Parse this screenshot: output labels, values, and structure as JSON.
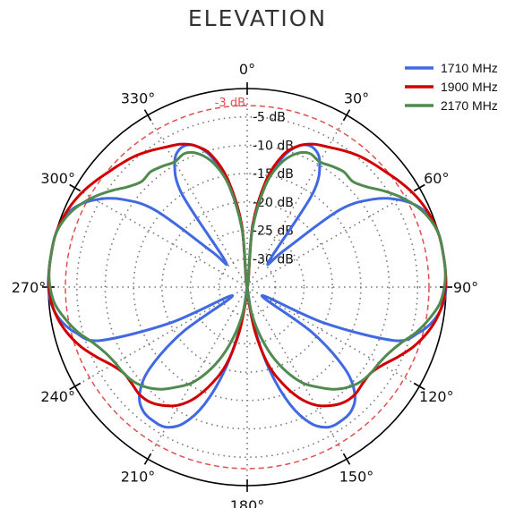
{
  "chart_data": {
    "type": "polar-line",
    "title": "ELEVATION",
    "angle_ticks": [
      {
        "deg": 0,
        "label": "0°"
      },
      {
        "deg": 30,
        "label": "30°"
      },
      {
        "deg": 60,
        "label": "60°"
      },
      {
        "deg": 90,
        "label": "90°"
      },
      {
        "deg": 120,
        "label": "120°"
      },
      {
        "deg": 150,
        "label": "150°"
      },
      {
        "deg": 180,
        "label": "180°"
      },
      {
        "deg": 210,
        "label": "210°"
      },
      {
        "deg": 240,
        "label": "240°"
      },
      {
        "deg": 270,
        "label": "270°"
      },
      {
        "deg": 300,
        "label": "300°"
      },
      {
        "deg": 330,
        "label": "330°"
      }
    ],
    "radial_range_db": [
      -35,
      0
    ],
    "radial_ticks": [
      {
        "db": -5,
        "label": "-5 dB"
      },
      {
        "db": -10,
        "label": "-10 dB"
      },
      {
        "db": -15,
        "label": "-15 dB"
      },
      {
        "db": -20,
        "label": "-20 dB"
      },
      {
        "db": -25,
        "label": "-25 dB"
      },
      {
        "db": -30,
        "label": "-30 dB"
      }
    ],
    "reference_ring": {
      "db": -3,
      "label": "-3 dB",
      "color": "#e05050"
    },
    "legend_position": "top-right",
    "series": [
      {
        "name": "1710 MHz",
        "color": "#4169e1",
        "angles": [
          0,
          5,
          10,
          15,
          20,
          25,
          30,
          35,
          40,
          45,
          50,
          55,
          60,
          65,
          70,
          75,
          80,
          85,
          90,
          95,
          100,
          105,
          110,
          115,
          120,
          125,
          130,
          135,
          140,
          145,
          150,
          155,
          160,
          165,
          170,
          175,
          180
        ],
        "values": [
          -35,
          -25,
          -17,
          -11.5,
          -8.5,
          -7.8,
          -9.5,
          -15,
          -29,
          -26,
          -14,
          -8,
          -4.2,
          -1.6,
          -0.4,
          0,
          0,
          0,
          0,
          -0.4,
          -1.6,
          -3.8,
          -7.5,
          -20,
          -32,
          -21,
          -12.5,
          -8.2,
          -6.5,
          -6.2,
          -6.5,
          -8.5,
          -13,
          -20,
          -28,
          -35,
          -35
        ]
      },
      {
        "name": "1900 MHz",
        "color": "#d10000",
        "angles": [
          0,
          5,
          10,
          15,
          20,
          25,
          30,
          35,
          40,
          45,
          50,
          55,
          60,
          65,
          70,
          75,
          80,
          85,
          90,
          95,
          100,
          105,
          110,
          115,
          120,
          125,
          130,
          135,
          140,
          145,
          150,
          155,
          160,
          165,
          170,
          175,
          180
        ],
        "values": [
          -35,
          -24,
          -16,
          -11,
          -8.5,
          -7.2,
          -6.5,
          -5.6,
          -4.7,
          -4,
          -3.3,
          -2.4,
          -1.5,
          -0.8,
          -0.3,
          0,
          0,
          0,
          -0.1,
          -0.5,
          -1.3,
          -2.5,
          -4,
          -5.8,
          -7.5,
          -8.5,
          -8.5,
          -8.2,
          -8.5,
          -9.5,
          -11,
          -13.5,
          -17,
          -21,
          -27,
          -33,
          -35
        ]
      },
      {
        "name": "2170 MHz",
        "color": "#4f8a4f",
        "angles": [
          0,
          5,
          10,
          15,
          20,
          25,
          30,
          35,
          40,
          45,
          50,
          55,
          60,
          65,
          70,
          75,
          80,
          85,
          90,
          95,
          100,
          105,
          110,
          115,
          120,
          125,
          130,
          135,
          140,
          145,
          150,
          155,
          160,
          165,
          170,
          175,
          180
        ],
        "values": [
          -35,
          -25,
          -17,
          -12.5,
          -10,
          -9,
          -9.5,
          -9,
          -8.5,
          -8.7,
          -7.5,
          -5.5,
          -3.5,
          -1.8,
          -0.6,
          0,
          0,
          0,
          -0.3,
          -1,
          -2.5,
          -4.2,
          -6.2,
          -7.5,
          -8.2,
          -8.5,
          -9,
          -10,
          -11.5,
          -13.5,
          -15.5,
          -18.5,
          -22,
          -26,
          -30,
          -34,
          -35
        ]
      }
    ]
  }
}
